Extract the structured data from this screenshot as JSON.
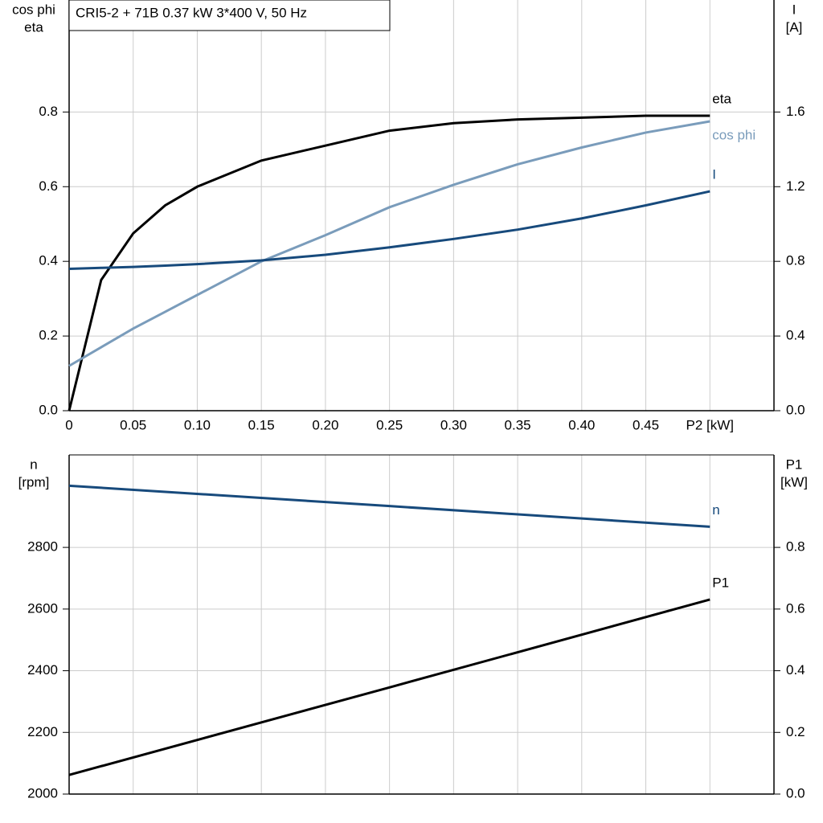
{
  "chart_data": [
    {
      "type": "line",
      "title": "CRI5-2 + 71B   0.37 kW   3*400 V, 50 Hz",
      "ylabel": [
        "cos phi",
        "eta"
      ],
      "y2label": [
        "I",
        "[A]"
      ],
      "x": [
        0,
        0.025,
        0.05,
        0.075,
        0.1,
        0.15,
        0.2,
        0.25,
        0.3,
        0.35,
        0.4,
        0.45,
        0.5
      ],
      "xlim": [
        0,
        0.55
      ],
      "xticks": [
        0,
        0.05,
        {
          "value": 0.1,
          "label": "0.10"
        },
        0.15,
        {
          "value": 0.2,
          "label": "0.20"
        },
        0.25,
        {
          "value": 0.3,
          "label": "0.30"
        },
        0.35,
        {
          "value": 0.4,
          "label": "0.40"
        },
        0.45,
        {
          "value": 0.5,
          "label": "P2 [kW]"
        }
      ],
      "ylim": [
        0,
        1.1
      ],
      "yticks": [
        {
          "value": 0,
          "label": "0.0"
        },
        0.2,
        0.4,
        0.6,
        0.8
      ],
      "y2lim": [
        0,
        2.2
      ],
      "y2ticks": [
        {
          "value": 0,
          "label": "0.0"
        },
        0.4,
        0.8,
        1.2,
        1.6
      ],
      "grid": true,
      "series": [
        {
          "name": "eta",
          "color": "#000000",
          "values": [
            0,
            0.35,
            0.475,
            0.55,
            0.6,
            0.67,
            0.71,
            0.75,
            0.77,
            0.78,
            0.785,
            0.79,
            0.79
          ]
        },
        {
          "name": "cos phi",
          "color": "#7a9cbb",
          "values": [
            0.12,
            0.17,
            0.22,
            0.265,
            0.31,
            0.4,
            0.47,
            0.545,
            0.605,
            0.66,
            0.705,
            0.745,
            0.775
          ]
        },
        {
          "name": "I",
          "color": "#174a7c",
          "axis": "y2",
          "values": [
            0.76,
            0.765,
            0.77,
            0.777,
            0.785,
            0.805,
            0.835,
            0.875,
            0.92,
            0.97,
            1.03,
            1.1,
            1.175
          ]
        }
      ]
    },
    {
      "type": "line",
      "ylabel": [
        "n",
        "[rpm]"
      ],
      "y2label": [
        "P1",
        "[kW]"
      ],
      "x": [
        0,
        0.25,
        0.5
      ],
      "xlim": [
        0,
        0.55
      ],
      "ylim": [
        2000,
        3100
      ],
      "yticks": [
        2000,
        2200,
        2400,
        2600,
        2800
      ],
      "y2lim": [
        0,
        1.1
      ],
      "y2ticks": [
        {
          "value": 0,
          "label": "0.0"
        },
        0.2,
        0.4,
        0.6,
        0.8
      ],
      "grid": true,
      "series": [
        {
          "name": "n",
          "color": "#174a7c",
          "values": [
            3000,
            2934,
            2867
          ]
        },
        {
          "name": "P1",
          "color": "#000000",
          "axis": "y2",
          "values": [
            0.062,
            0.346,
            0.631
          ]
        }
      ]
    }
  ]
}
